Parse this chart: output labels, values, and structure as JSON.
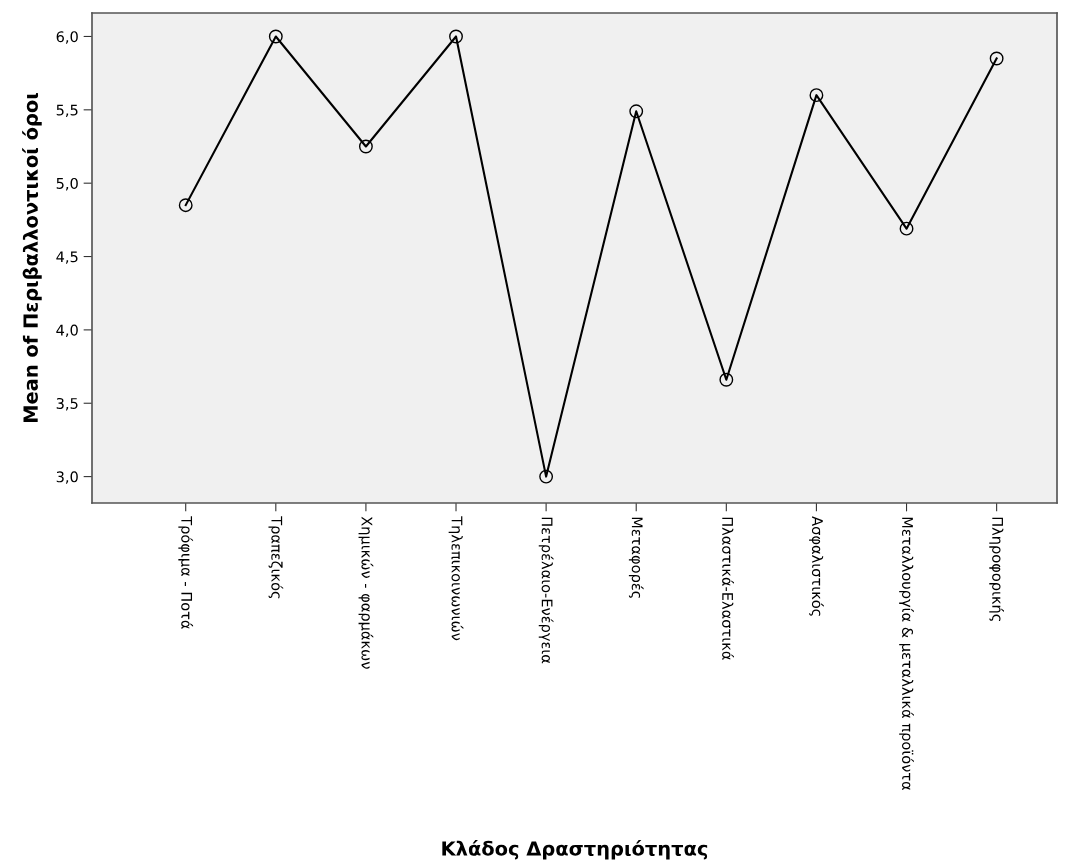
{
  "chart_data": {
    "type": "line",
    "xlabel": "Κλάδος Δραστηριότητας",
    "ylabel": "Mean of Περιβαλλοντικοί όροι",
    "categories": [
      "Τρόφιμα - Ποτά",
      "Τραπεζικός",
      "Χημικών - φαρμάκων",
      "Τηλεπικοινωνιών",
      "Πετρέλαιο-Ενέργεια",
      "Μεταφορές",
      "Πλαστικά-Ελαστικά",
      "Ασφαλιστικός",
      "Μεταλλουργία & μεταλλικά προϊόντα",
      "Πληροφορικής"
    ],
    "series": [
      {
        "color": "#000000",
        "values": [
          4.85,
          6.0,
          5.25,
          6.0,
          3.0,
          5.49,
          3.66,
          5.6,
          4.69,
          5.85
        ]
      }
    ],
    "ylim": [
      2.82,
      6.16
    ],
    "yticks": [
      {
        "value": 3.0,
        "label": "3,0"
      },
      {
        "value": 3.5,
        "label": "3,5"
      },
      {
        "value": 4.0,
        "label": "4,0"
      },
      {
        "value": 4.5,
        "label": "4,5"
      },
      {
        "value": 5.0,
        "label": "5,0"
      },
      {
        "value": 5.5,
        "label": "5,5"
      },
      {
        "value": 6.0,
        "label": "6,0"
      }
    ],
    "grid": false,
    "marker": "circle",
    "line_style": "solid"
  }
}
